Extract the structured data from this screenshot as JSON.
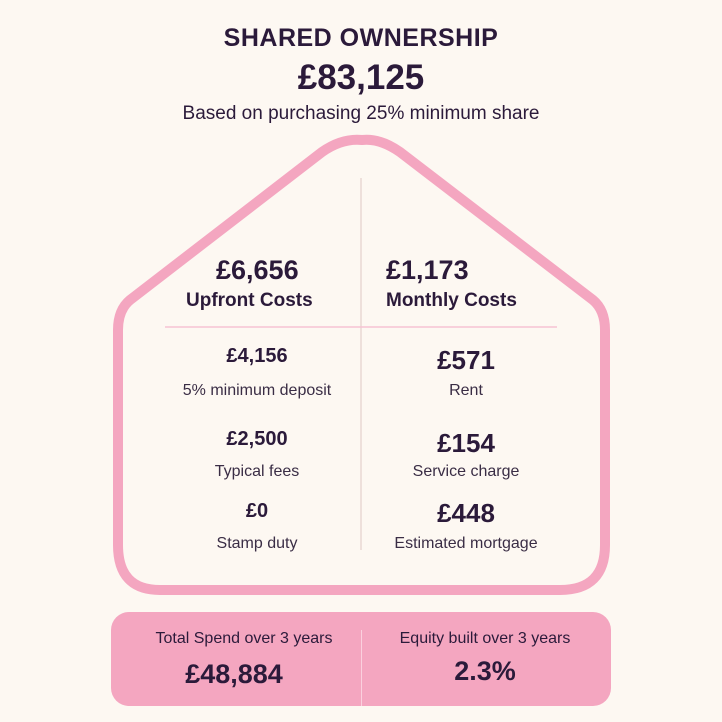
{
  "header": {
    "title": "SHARED OWNERSHIP",
    "price": "£83,125",
    "subtitle": "Based on purchasing 25% minimum share"
  },
  "upfront": {
    "total": "£6,656",
    "heading": "Upfront Costs",
    "items": [
      {
        "value": "£4,156",
        "label": "5% minimum deposit"
      },
      {
        "value": "£2,500",
        "label": "Typical fees"
      },
      {
        "value": "£0",
        "label": "Stamp duty"
      }
    ]
  },
  "monthly": {
    "total": "£1,173",
    "heading": "Monthly Costs",
    "items": [
      {
        "value": "£571",
        "label": "Rent"
      },
      {
        "value": "£154",
        "label": "Service charge"
      },
      {
        "value": "£448",
        "label": "Estimated mortgage"
      }
    ]
  },
  "summary": {
    "total_spend_label": "Total Spend over 3 years",
    "total_spend_value": "£48,884",
    "equity_label": "Equity built over 3 years",
    "equity_value": "2.3%"
  },
  "colors": {
    "background": "#fdf8f2",
    "accent_pink": "#f4a6c0",
    "text": "#2b1a3a"
  }
}
